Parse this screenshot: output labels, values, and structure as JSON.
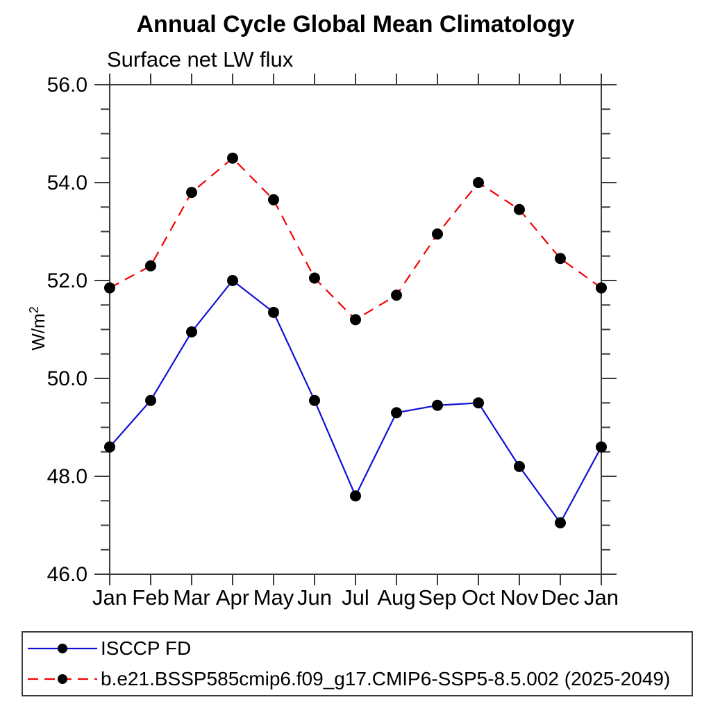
{
  "chart_data": {
    "type": "line",
    "title": "Annual Cycle Global Mean Climatology",
    "subtitle": "Surface net LW flux",
    "ylabel": "W/m",
    "ylabel_superscript": "2",
    "categories": [
      "Jan",
      "Feb",
      "Mar",
      "Apr",
      "May",
      "Jun",
      "Jul",
      "Aug",
      "Sep",
      "Oct",
      "Nov",
      "Dec",
      "Jan"
    ],
    "series": [
      {
        "name": "ISCCP FD",
        "color": "#0f0fd8",
        "line_style": "solid",
        "marker": "filled-black-circle",
        "values": [
          48.6,
          49.55,
          50.95,
          52.0,
          51.35,
          49.55,
          47.6,
          49.3,
          49.45,
          49.5,
          48.2,
          47.05,
          48.6
        ]
      },
      {
        "name": "b.e21.BSSP585cmip6.f09_g17.CMIP6-SSP5-8.5.002 (2025-2049)",
        "color": "#f30000",
        "line_style": "dashed",
        "marker": "filled-black-circle",
        "values": [
          51.85,
          52.3,
          53.8,
          54.5,
          53.65,
          52.05,
          51.2,
          51.7,
          52.95,
          54.0,
          53.45,
          52.45,
          51.85
        ]
      }
    ],
    "ylim": [
      46.0,
      56.0
    ],
    "ytick_labels": [
      "46.0",
      "48.0",
      "50.0",
      "52.0",
      "54.0",
      "56.0"
    ],
    "ytick_major_step": 2.0,
    "ytick_minor_step": 0.5,
    "grid": false,
    "marker_color": "#000000",
    "axis_color": "#3c3c3c",
    "legend_position": "bottom-left-box"
  }
}
